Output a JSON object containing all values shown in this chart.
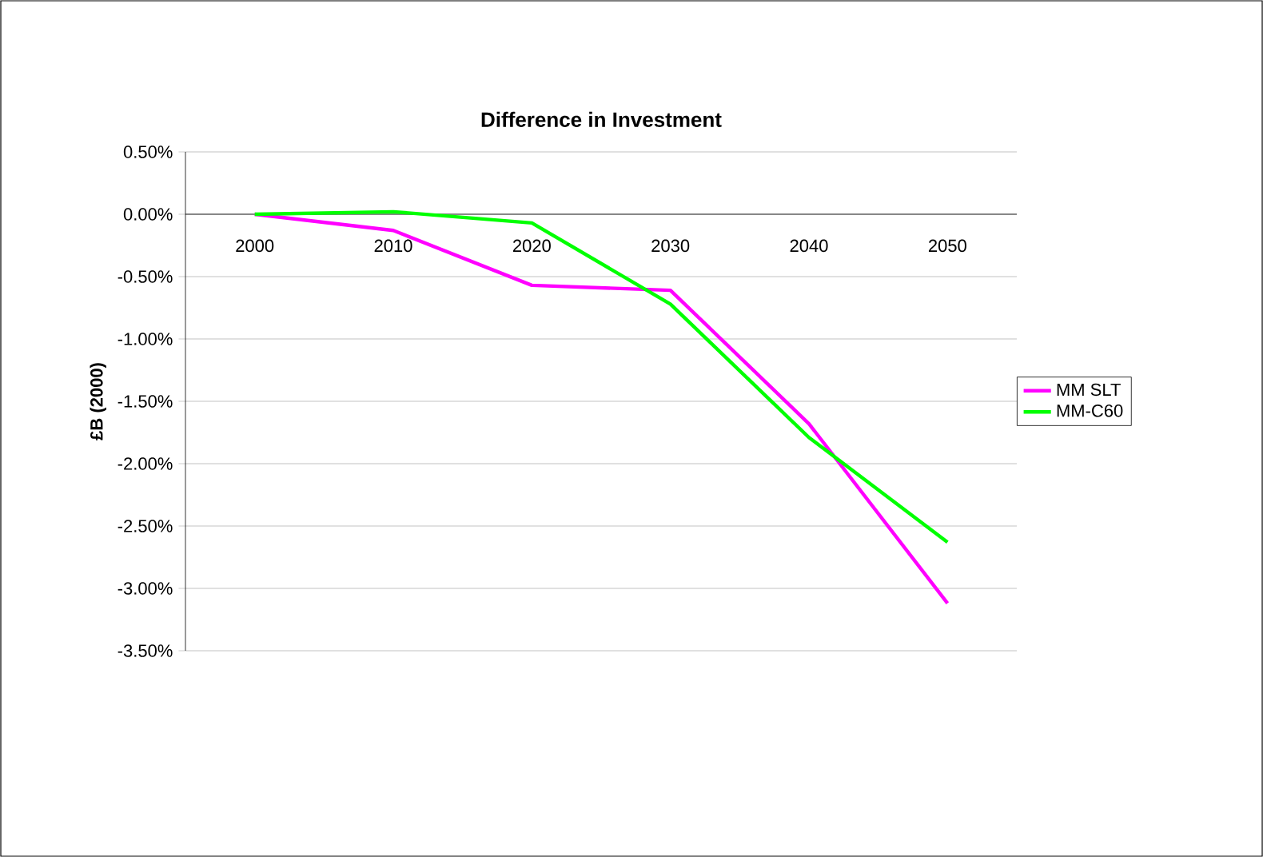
{
  "chart_data": {
    "type": "line",
    "title": "Difference in Investment",
    "ylabel": "£B (2000)",
    "categories": [
      "2000",
      "2010",
      "2020",
      "2030",
      "2040",
      "2050"
    ],
    "series": [
      {
        "name": "MM SLT",
        "color": "#ff00ff",
        "values": [
          0,
          -0.13,
          -0.57,
          -0.61,
          -1.68,
          -3.12
        ]
      },
      {
        "name": "MM-C60",
        "color": "#00ff00",
        "values": [
          0,
          0.02,
          -0.07,
          -0.72,
          -1.79,
          -2.63
        ]
      }
    ],
    "ylim": [
      -3.5,
      0.5
    ],
    "yticks": [
      {
        "value": 0.5,
        "label": "0.50%"
      },
      {
        "value": 0,
        "label": "0.00%"
      },
      {
        "value": -0.5,
        "label": "-0.50%"
      },
      {
        "value": -1,
        "label": "-1.00%"
      },
      {
        "value": -1.5,
        "label": "-1.50%"
      },
      {
        "value": -2,
        "label": "-2.00%"
      },
      {
        "value": -2.5,
        "label": "-2.50%"
      },
      {
        "value": -3,
        "label": "-3.00%"
      },
      {
        "value": -3.5,
        "label": "-3.50%"
      }
    ],
    "grid": "y",
    "legend": "right",
    "marker": "none",
    "line_style": "solid"
  }
}
